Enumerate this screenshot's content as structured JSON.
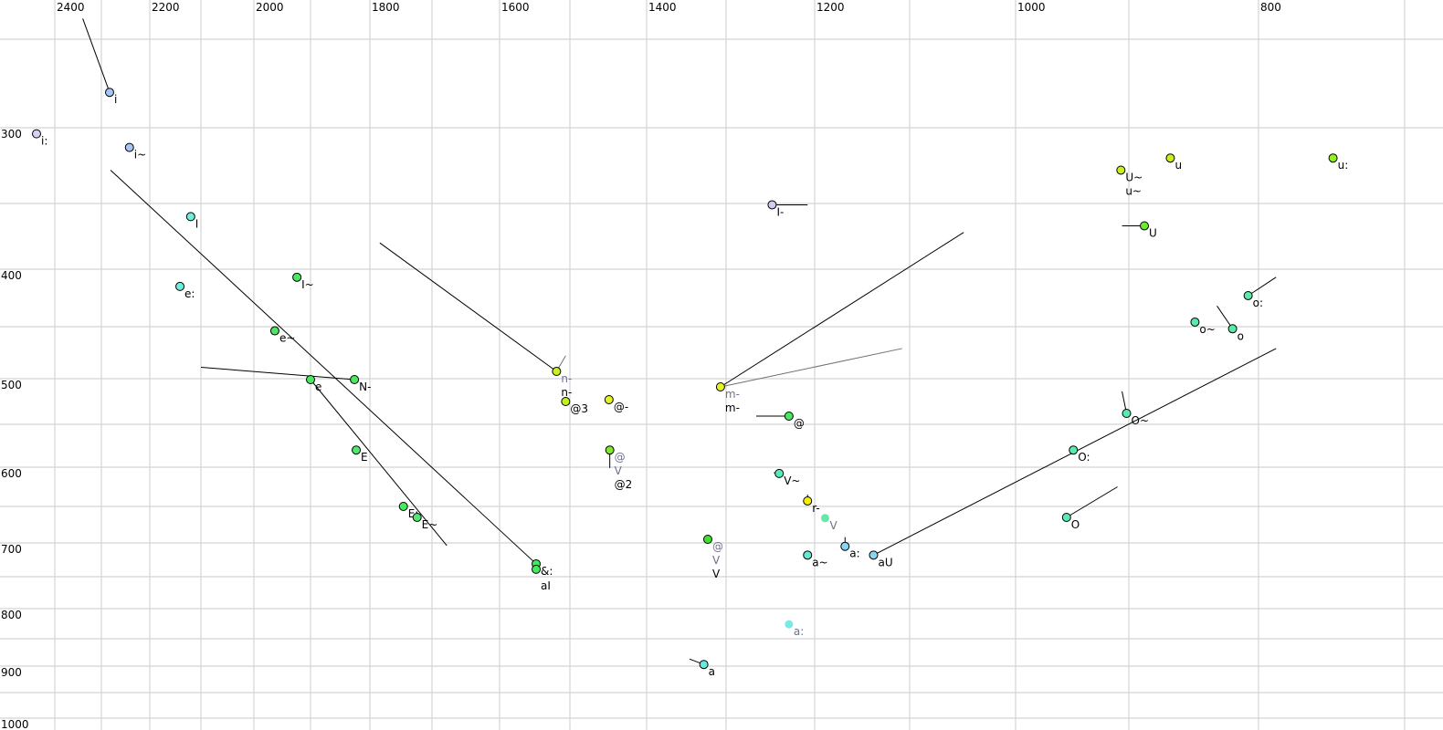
{
  "chart_data": {
    "type": "scatter",
    "title": "",
    "xlabel": "",
    "ylabel": "",
    "x_reversed": true,
    "y_reversed": true,
    "x_scale": "auditory (non-linear)",
    "y_scale": "auditory (non-linear)",
    "xlim": [
      2500,
      680
    ],
    "ylim": [
      240,
      1000
    ],
    "x_axis_position": "top",
    "y_axis_position": "left",
    "grid": true,
    "x_ticks": [
      2400,
      2200,
      2000,
      1800,
      1600,
      1400,
      1200,
      1000,
      800
    ],
    "y_ticks": [
      300,
      400,
      500,
      600,
      700,
      800,
      900,
      1000
    ],
    "x_grid": [
      2400,
      2300,
      2200,
      2100,
      2000,
      1900,
      1800,
      1700,
      1600,
      1500,
      1400,
      1300,
      1200,
      1100,
      1000,
      900,
      800,
      700
    ],
    "y_grid": [
      250,
      300,
      350,
      400,
      450,
      500,
      550,
      600,
      650,
      700,
      750,
      800,
      850,
      900,
      950,
      1000
    ],
    "colors": {
      "outline": "#000000",
      "secondary_label": "#707090",
      "grid": "#d4d4d4",
      "trajectory": "#000000",
      "secondary_trajectory": "#707070"
    },
    "points": [
      {
        "x": 2283,
        "y": 280,
        "color": "#a8c4f4",
        "labels": [
          {
            "t": "i",
            "secondary": false
          }
        ]
      },
      {
        "x": 2440,
        "y": 304,
        "color": "#d8d0f4",
        "labels": [
          {
            "t": "i:",
            "secondary": false
          }
        ]
      },
      {
        "x": 2242,
        "y": 313,
        "color": "#a8c4f4",
        "labels": [
          {
            "t": "i~",
            "secondary": false
          }
        ]
      },
      {
        "x": 2120,
        "y": 360,
        "color": "#70eedc",
        "labels": [
          {
            "t": "I",
            "secondary": false
          }
        ]
      },
      {
        "x": 2141,
        "y": 415,
        "color": "#70eedc",
        "labels": [
          {
            "t": "e:",
            "secondary": false
          }
        ]
      },
      {
        "x": 1924,
        "y": 407,
        "color": "#48e860",
        "labels": [
          {
            "t": "I~",
            "secondary": false
          }
        ]
      },
      {
        "x": 1963,
        "y": 454,
        "color": "#48e860",
        "labels": [
          {
            "t": "e~",
            "secondary": false
          }
        ]
      },
      {
        "x": 1900,
        "y": 501,
        "color": "#48e860",
        "labels": [
          {
            "t": "e",
            "secondary": false
          }
        ]
      },
      {
        "x": 1826,
        "y": 501,
        "color": "#48e860",
        "labels": [
          {
            "t": "N-",
            "secondary": false
          }
        ]
      },
      {
        "x": 1823,
        "y": 580,
        "color": "#50e870",
        "labels": [
          {
            "t": "E",
            "secondary": false
          }
        ]
      },
      {
        "x": 1746,
        "y": 650,
        "color": "#48e860",
        "labels": [
          {
            "t": "E:",
            "secondary": false
          }
        ]
      },
      {
        "x": 1724,
        "y": 665,
        "color": "#50e870",
        "labels": [
          {
            "t": "E~",
            "secondary": false
          }
        ]
      },
      {
        "x": 1548,
        "y": 731,
        "color": "#48e860",
        "labels": [
          {
            "t": "&:",
            "secondary": false
          }
        ]
      },
      {
        "x": 1548,
        "y": 739,
        "color": "#48e860",
        "labels": [
          {
            "t": "aI",
            "secondary": false
          }
        ]
      },
      {
        "x": 1519,
        "y": 493,
        "color": "#c8f020",
        "labels": [
          {
            "t": "n-",
            "secondary": true
          },
          {
            "t": "n-",
            "secondary": false
          }
        ]
      },
      {
        "x": 1506,
        "y": 525,
        "color": "#c0f020",
        "labels": [
          {
            "t": "@3",
            "secondary": false
          }
        ]
      },
      {
        "x": 1449,
        "y": 523,
        "color": "#e4f420",
        "labels": [
          {
            "t": "@-",
            "secondary": false
          }
        ]
      },
      {
        "x": 1448,
        "y": 580,
        "color": "#80e830",
        "labels": [
          {
            "t": "@",
            "secondary": true
          },
          {
            "t": "V",
            "secondary": true
          },
          {
            "t": "@2",
            "secondary": false
          }
        ]
      },
      {
        "x": 1323,
        "y": 695,
        "color": "#40e030",
        "labels": [
          {
            "t": "@",
            "secondary": true
          },
          {
            "t": "V",
            "secondary": true
          },
          {
            "t": "V",
            "secondary": false
          }
        ]
      },
      {
        "x": 1307,
        "y": 509,
        "color": "#e4f420",
        "labels": [
          {
            "t": "m-",
            "secondary": true
          },
          {
            "t": "m-",
            "secondary": false
          }
        ]
      },
      {
        "x": 1248,
        "y": 351,
        "color": "#d0ccf4",
        "labels": [
          {
            "t": "I-",
            "secondary": false
          }
        ]
      },
      {
        "x": 1229,
        "y": 541,
        "color": "#48e860",
        "labels": [
          {
            "t": "@",
            "secondary": false
          }
        ]
      },
      {
        "x": 1240,
        "y": 608,
        "color": "#58eab8",
        "labels": [
          {
            "t": "V~",
            "secondary": false
          }
        ]
      },
      {
        "x": 1208,
        "y": 643,
        "color": "#f4f000",
        "labels": [
          {
            "t": "r-",
            "secondary": false
          }
        ]
      },
      {
        "x": 1208,
        "y": 718,
        "color": "#60ead0",
        "labels": [
          {
            "t": "a~",
            "secondary": false
          }
        ]
      },
      {
        "x": 1168,
        "y": 705,
        "color": "#88d4f4",
        "labels": [
          {
            "t": "a:",
            "secondary": false
          }
        ]
      },
      {
        "x": 1138,
        "y": 718,
        "color": "#88d4f4",
        "labels": [
          {
            "t": "aU",
            "secondary": false
          }
        ]
      },
      {
        "x": 1328,
        "y": 897,
        "color": "#60eae0",
        "labels": [
          {
            "t": "a",
            "secondary": false
          }
        ]
      },
      {
        "x": 907,
        "y": 328,
        "color": "#c8f020",
        "labels": [
          {
            "t": "U~",
            "secondary": false
          },
          {
            "t": "u~",
            "secondary": false
          }
        ]
      },
      {
        "x": 868,
        "y": 320,
        "color": "#c8f020",
        "labels": [
          {
            "t": "u",
            "secondary": false
          }
        ]
      },
      {
        "x": 749,
        "y": 320,
        "color": "#90f020",
        "labels": [
          {
            "t": "u:",
            "secondary": false
          }
        ]
      },
      {
        "x": 888,
        "y": 367,
        "color": "#70e830",
        "labels": [
          {
            "t": "U",
            "secondary": false
          }
        ]
      },
      {
        "x": 808,
        "y": 423,
        "color": "#58eaa8",
        "labels": [
          {
            "t": "o:",
            "secondary": false
          }
        ]
      },
      {
        "x": 849,
        "y": 446,
        "color": "#58eaa8",
        "labels": [
          {
            "t": "o~",
            "secondary": false
          }
        ]
      },
      {
        "x": 820,
        "y": 452,
        "color": "#58eaa8",
        "labels": [
          {
            "t": "o",
            "secondary": false
          }
        ]
      },
      {
        "x": 902,
        "y": 538,
        "color": "#58eab0",
        "labels": [
          {
            "t": "O~",
            "secondary": false
          }
        ]
      },
      {
        "x": 949,
        "y": 580,
        "color": "#58eab0",
        "labels": [
          {
            "t": "O:",
            "secondary": false
          }
        ]
      },
      {
        "x": 955,
        "y": 665,
        "color": "#58eab0",
        "labels": [
          {
            "t": "O",
            "secondary": false
          }
        ]
      },
      {
        "x": 1229,
        "y": 826,
        "color": "#7ae8e4",
        "secondary": true,
        "labels": [
          {
            "t": "a:",
            "secondary": true
          }
        ]
      },
      {
        "x": 1189,
        "y": 666,
        "color": "#68e8a8",
        "secondary": true,
        "labels": [
          {
            "t": "V",
            "secondary": true
          }
        ]
      }
    ],
    "trajectories": [
      {
        "from": [
          2283,
          280
        ],
        "to": [
          2340,
          239
        ],
        "secondary": false
      },
      {
        "from": [
          2281,
          328
        ],
        "to": [
          1548,
          731
        ],
        "secondary": false
      },
      {
        "from": [
          2100,
          489
        ],
        "to": [
          1826,
          501
        ],
        "secondary": false
      },
      {
        "from": [
          1900,
          501
        ],
        "to": [
          1678,
          704
        ],
        "secondary": false
      },
      {
        "from": [
          1784,
          380
        ],
        "to": [
          1519,
          493
        ],
        "secondary": false
      },
      {
        "from": [
          1519,
          493
        ],
        "to": [
          1506,
          478
        ],
        "secondary": true
      },
      {
        "from": [
          1448,
          580
        ],
        "to": [
          1448,
          601
        ],
        "secondary": false
      },
      {
        "from": [
          1307,
          509
        ],
        "to": [
          1049,
          372
        ],
        "secondary": false
      },
      {
        "from": [
          1307,
          509
        ],
        "to": [
          1108,
          471
        ],
        "secondary": true
      },
      {
        "from": [
          1248,
          351
        ],
        "to": [
          1208,
          351
        ],
        "secondary": false
      },
      {
        "from": [
          1266,
          541
        ],
        "to": [
          1229,
          541
        ],
        "secondary": false
      },
      {
        "from": [
          1246,
          607
        ],
        "to": [
          1240,
          608
        ],
        "secondary": false
      },
      {
        "from": [
          1208,
          643
        ],
        "to": [
          1208,
          635
        ],
        "secondary": false
      },
      {
        "from": [
          1168,
          705
        ],
        "to": [
          1168,
          692
        ],
        "secondary": false
      },
      {
        "from": [
          1138,
          718
        ],
        "to": [
          788,
          471
        ],
        "secondary": false
      },
      {
        "from": [
          1346,
          887
        ],
        "to": [
          1328,
          897
        ],
        "secondary": false
      },
      {
        "from": [
          906,
          367
        ],
        "to": [
          888,
          367
        ],
        "secondary": false
      },
      {
        "from": [
          808,
          423
        ],
        "to": [
          788,
          407
        ],
        "secondary": false
      },
      {
        "from": [
          832,
          432
        ],
        "to": [
          820,
          452
        ],
        "secondary": false
      },
      {
        "from": [
          906,
          514
        ],
        "to": [
          902,
          538
        ],
        "secondary": false
      },
      {
        "from": [
          955,
          665
        ],
        "to": [
          910,
          625
        ],
        "secondary": false
      }
    ]
  }
}
